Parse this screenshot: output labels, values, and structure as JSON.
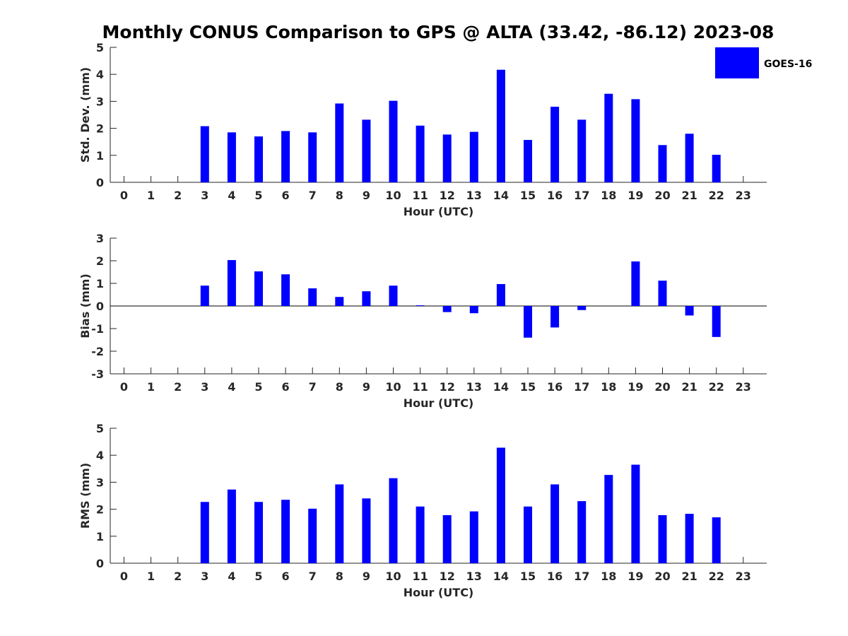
{
  "title": "Monthly CONUS Comparison to GPS @ ALTA (33.42, -86.12) 2023-08",
  "legend": {
    "label": "GOES-16",
    "color": "#0000ff",
    "placement": "top-right"
  },
  "chart_data": [
    {
      "type": "bar",
      "name": "std-dev",
      "xlabel": "Hour (UTC)",
      "ylabel": "Std. Dev. (mm)",
      "ylim": [
        0,
        5
      ],
      "yticks": [
        0,
        1,
        2,
        3,
        4,
        5
      ],
      "categories": [
        "0",
        "1",
        "2",
        "3",
        "4",
        "5",
        "6",
        "7",
        "8",
        "9",
        "10",
        "11",
        "12",
        "13",
        "14",
        "15",
        "16",
        "17",
        "18",
        "19",
        "20",
        "21",
        "22",
        "23"
      ],
      "series": [
        {
          "name": "GOES-16",
          "values": [
            null,
            null,
            null,
            2.08,
            1.85,
            1.7,
            1.9,
            1.85,
            2.92,
            2.32,
            3.02,
            2.1,
            1.77,
            1.87,
            4.17,
            1.57,
            2.8,
            2.32,
            3.28,
            3.08,
            1.38,
            1.8,
            1.02,
            null
          ]
        }
      ],
      "grid": false
    },
    {
      "type": "bar",
      "name": "bias",
      "xlabel": "Hour (UTC)",
      "ylabel": "Bias (mm)",
      "ylim": [
        -3,
        3
      ],
      "yticks": [
        -3,
        -2,
        -1,
        0,
        1,
        2,
        3
      ],
      "categories": [
        "0",
        "1",
        "2",
        "3",
        "4",
        "5",
        "6",
        "7",
        "8",
        "9",
        "10",
        "11",
        "12",
        "13",
        "14",
        "15",
        "16",
        "17",
        "18",
        "19",
        "20",
        "21",
        "22",
        "23"
      ],
      "series": [
        {
          "name": "GOES-16",
          "values": [
            null,
            null,
            null,
            0.9,
            2.03,
            1.53,
            1.4,
            0.78,
            0.4,
            0.65,
            0.9,
            0.03,
            -0.27,
            -0.32,
            0.97,
            -1.4,
            -0.95,
            -0.18,
            null,
            1.97,
            1.12,
            -0.42,
            -1.37,
            null
          ]
        }
      ],
      "grid": false,
      "zero_line": true
    },
    {
      "type": "bar",
      "name": "rms",
      "xlabel": "Hour (UTC)",
      "ylabel": "RMS (mm)",
      "ylim": [
        0,
        5
      ],
      "yticks": [
        0,
        1,
        2,
        3,
        4,
        5
      ],
      "categories": [
        "0",
        "1",
        "2",
        "3",
        "4",
        "5",
        "6",
        "7",
        "8",
        "9",
        "10",
        "11",
        "12",
        "13",
        "14",
        "15",
        "16",
        "17",
        "18",
        "19",
        "20",
        "21",
        "22",
        "23"
      ],
      "series": [
        {
          "name": "GOES-16",
          "values": [
            null,
            null,
            null,
            2.27,
            2.73,
            2.27,
            2.35,
            2.02,
            2.92,
            2.4,
            3.15,
            2.1,
            1.78,
            1.92,
            4.28,
            2.1,
            2.92,
            2.3,
            3.27,
            3.65,
            1.78,
            1.83,
            1.7,
            null
          ]
        }
      ],
      "grid": false
    }
  ]
}
